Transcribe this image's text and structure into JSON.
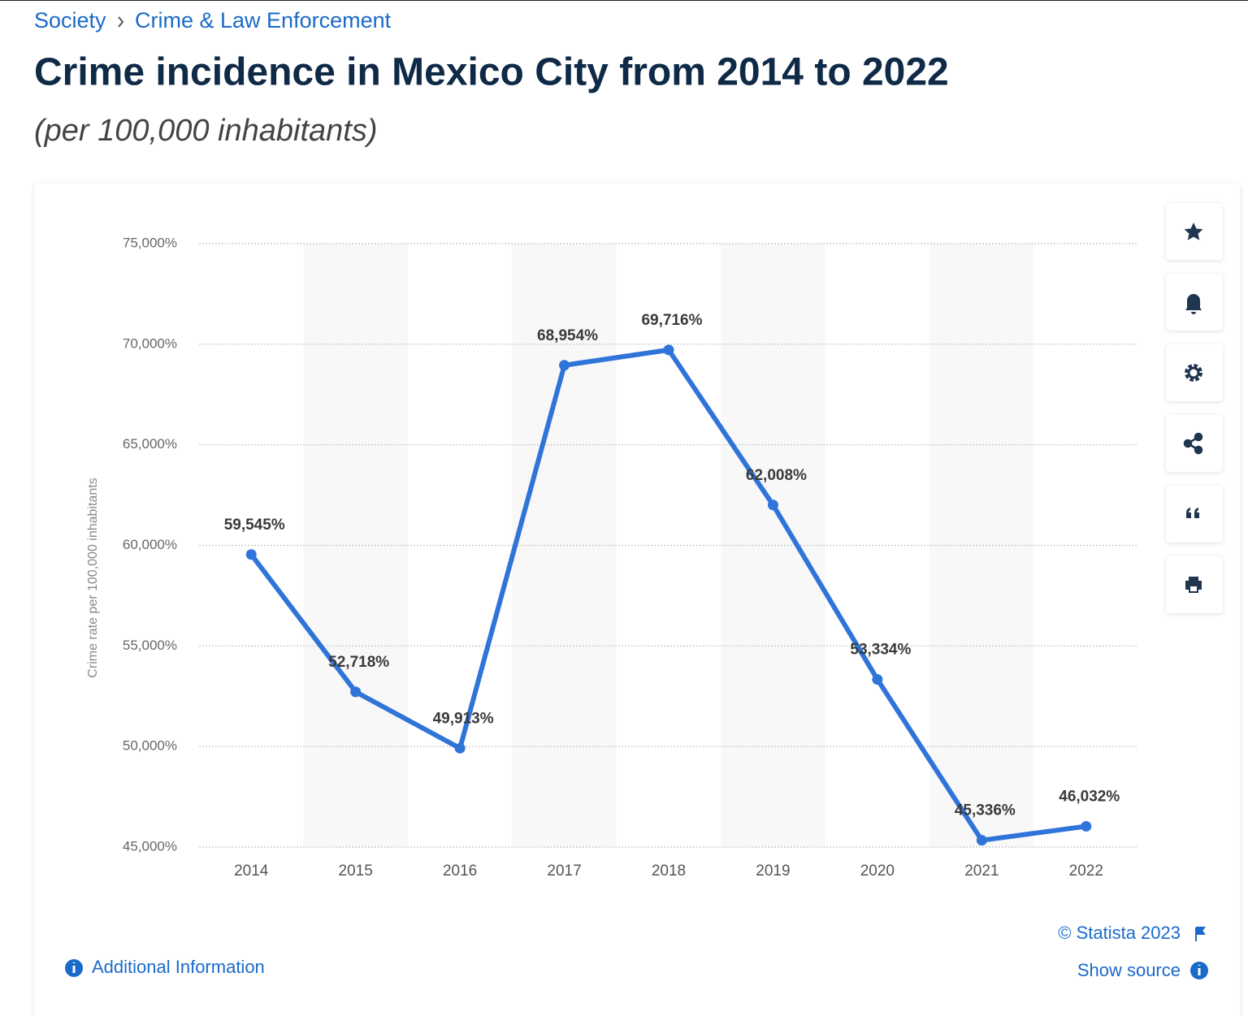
{
  "breadcrumb": [
    "Society",
    "Crime & Law Enforcement"
  ],
  "footer": {
    "copyright": "© Statista 2023",
    "show_source": "Show source",
    "additional_info": "Additional Information"
  },
  "chart_data": {
    "type": "line",
    "title": "Crime incidence in Mexico City from 2014 to 2022",
    "subtitle": "(per 100,000 inhabitants)",
    "y_label": "Crime rate per 100,000 inhabitants",
    "categories": [
      "2014",
      "2015",
      "2016",
      "2017",
      "2018",
      "2019",
      "2020",
      "2021",
      "2022"
    ],
    "series": [
      {
        "name": "Crime rate",
        "color": "#2f74d9",
        "values": [
          59545,
          52718,
          49913,
          68954,
          69716,
          62008,
          53334,
          45336,
          46032
        ],
        "value_labels": [
          "59,545%",
          "52,718%",
          "49,913%",
          "68,954%",
          "69,716%",
          "62,008%",
          "53,334%",
          "45,336%",
          "46,032%"
        ]
      }
    ],
    "ylim": [
      45000,
      75000
    ],
    "yticks": [
      {
        "value": 45000,
        "label": "45,000%"
      },
      {
        "value": 50000,
        "label": "50,000%"
      },
      {
        "value": 55000,
        "label": "55,000%"
      },
      {
        "value": 60000,
        "label": "60,000%"
      },
      {
        "value": 65000,
        "label": "65,000%"
      },
      {
        "value": 70000,
        "label": "70,000%"
      },
      {
        "value": 75000,
        "label": "75,000%"
      }
    ],
    "grid": true
  }
}
